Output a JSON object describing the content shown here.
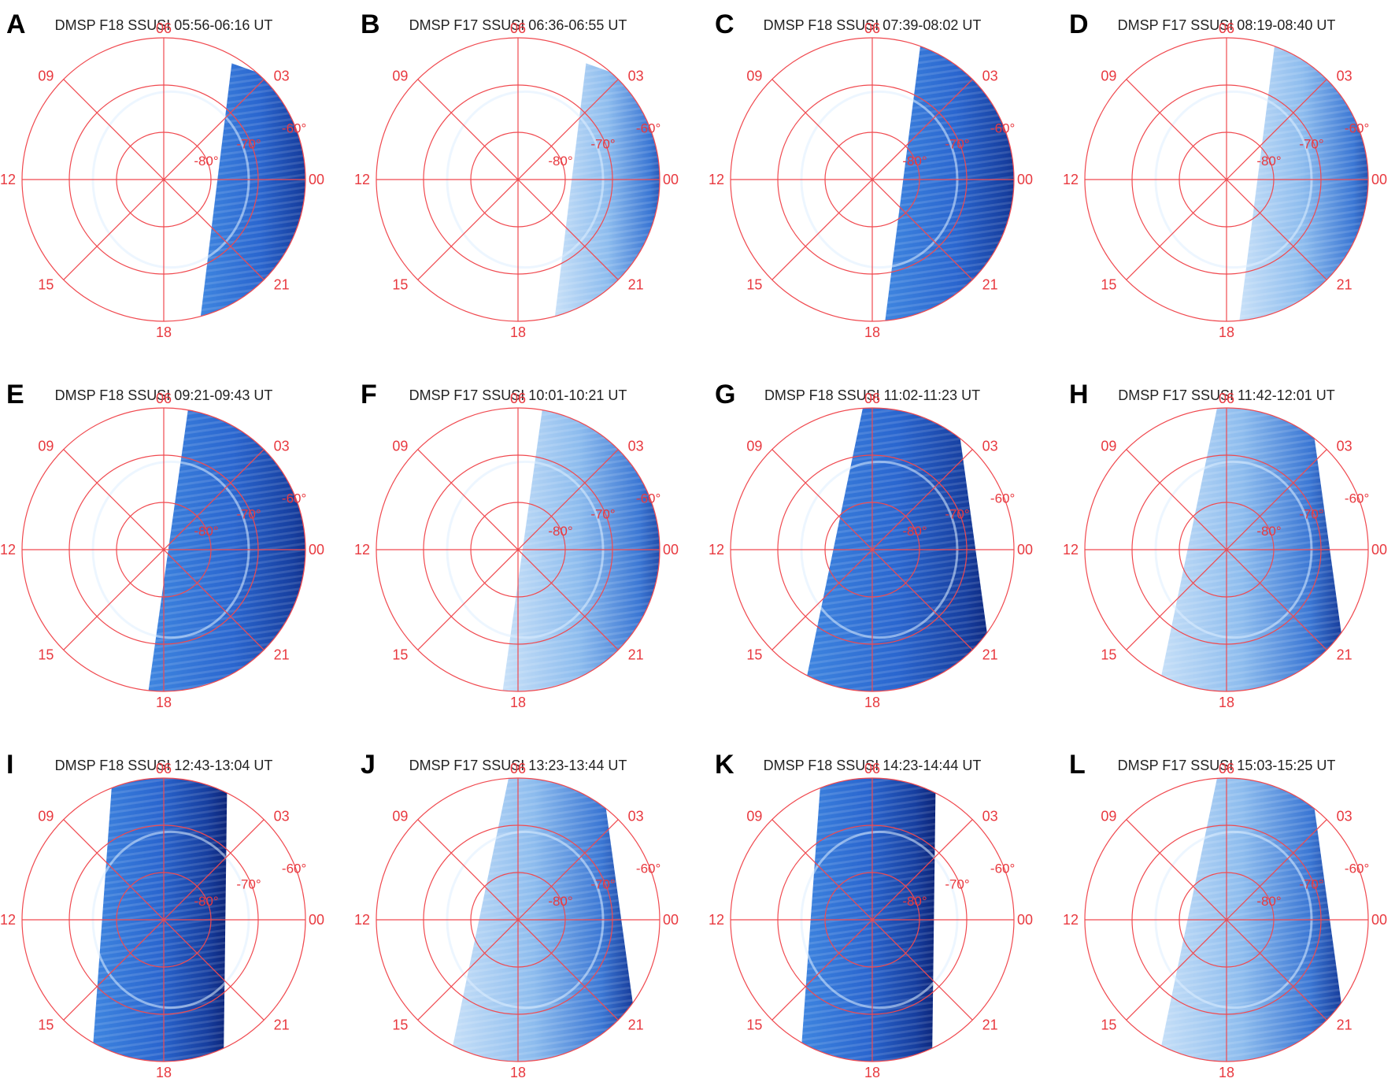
{
  "panels": [
    {
      "letter": "A",
      "title": "DMSP F18 SSUSI 05:56-06:16 UT",
      "swath": "right-edge",
      "tone": "dark"
    },
    {
      "letter": "B",
      "title": "DMSP F17 SSUSI 06:36-06:55 UT",
      "swath": "right-edge",
      "tone": "light"
    },
    {
      "letter": "C",
      "title": "DMSP F18 SSUSI 07:39-08:02 UT",
      "swath": "right-wide",
      "tone": "dark"
    },
    {
      "letter": "D",
      "title": "DMSP F17 SSUSI 08:19-08:40 UT",
      "swath": "right-wide",
      "tone": "light"
    },
    {
      "letter": "E",
      "title": "DMSP F18 SSUSI 09:21-09:43 UT",
      "swath": "right-half",
      "tone": "dark"
    },
    {
      "letter": "F",
      "title": "DMSP F17 SSUSI 10:01-10:21 UT",
      "swath": "right-half",
      "tone": "light"
    },
    {
      "letter": "G",
      "title": "DMSP F18 SSUSI 11:02-11:23 UT",
      "swath": "center-band",
      "tone": "dark"
    },
    {
      "letter": "H",
      "title": "DMSP F17 SSUSI 11:42-12:01 UT",
      "swath": "center-band",
      "tone": "light"
    },
    {
      "letter": "I",
      "title": "DMSP F18 SSUSI 12:43-13:04 UT",
      "swath": "left-band",
      "tone": "dark"
    },
    {
      "letter": "J",
      "title": "DMSP F17 SSUSI 13:23-13:44 UT",
      "swath": "center-band",
      "tone": "light"
    },
    {
      "letter": "K",
      "title": "DMSP F18 SSUSI 14:23-14:44 UT",
      "swath": "left-band",
      "tone": "dark"
    },
    {
      "letter": "L",
      "title": "DMSP F17 SSUSI 15:03-15:25 UT",
      "swath": "center-band",
      "tone": "light"
    }
  ],
  "mlt_labels": {
    "top": "06",
    "right": "00",
    "bottom": "18",
    "left": "12",
    "upper_left": "09",
    "upper_right": "03",
    "lower_left": "15",
    "lower_right": "21"
  },
  "lat_labels": [
    "-60°",
    "-70°",
    "-80°"
  ],
  "colors": {
    "grid": "#f0494f",
    "dark_blue": "#0a2a8a",
    "mid_blue": "#2f6fd6",
    "light_blue": "#a9cdf2"
  }
}
